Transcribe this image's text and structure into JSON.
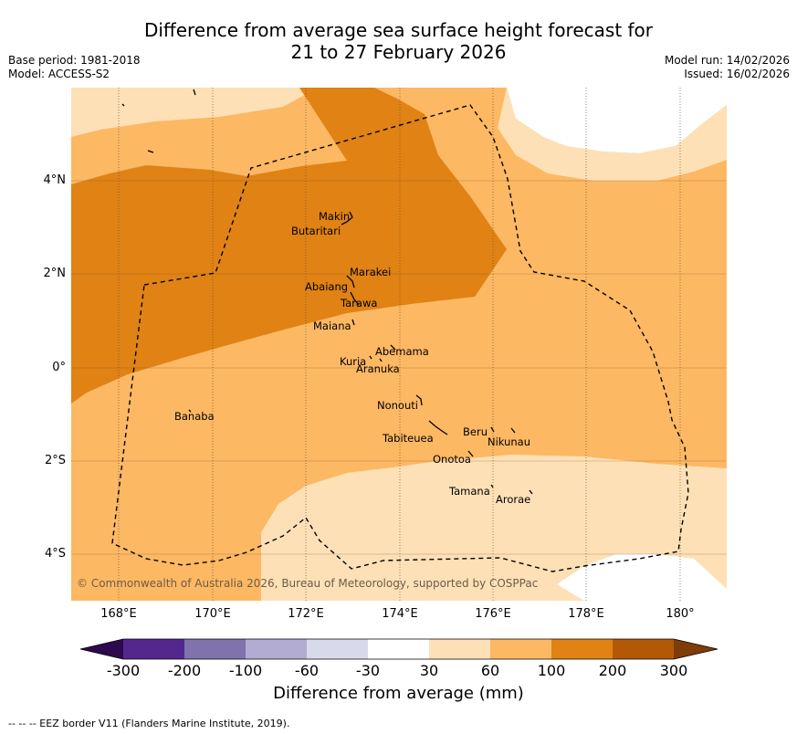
{
  "header": {
    "title_line1": "Difference from average sea surface height forecast for",
    "title_line2": "21 to 27 February 2026",
    "base_period": "Base period: 1981-2018",
    "model": "Model: ACCESS-S2",
    "model_run": "Model run: 14/02/2026",
    "issued": "Issued: 16/02/2026"
  },
  "map": {
    "lat_labels": [
      "4°N",
      "2°N",
      "0°",
      "2°S",
      "4°S"
    ],
    "lon_labels": [
      "168°E",
      "170°E",
      "172°E",
      "174°E",
      "176°E",
      "178°E",
      "180°"
    ],
    "places": [
      "Makin",
      "Butaritari",
      "Marakei",
      "Abaiang",
      "Tarawa",
      "Maiana",
      "Abemama",
      "Kuria",
      "Aranuka",
      "Nonouti",
      "Banaba",
      "Beru",
      "Nikunau",
      "Tabiteuea",
      "Onotoa",
      "Tamana",
      "Arorae"
    ],
    "credit": "© Commonwealth of Australia 2026, Bureau of Meteorology, supported by COSPPac"
  },
  "colorbar": {
    "labels": [
      "-300",
      "-200",
      "-100",
      "-60",
      "-30",
      "30",
      "60",
      "100",
      "200",
      "300"
    ],
    "colors": [
      "#2d0a4d",
      "#54278f",
      "#8073ac",
      "#b2abd2",
      "#d8daeb",
      "#ffffff",
      "#fee0b6",
      "#fdb863",
      "#e08214",
      "#b35806",
      "#7f3b08"
    ],
    "title": "Difference from average (mm)"
  },
  "footnote": "--  --  -- EEZ border V11 (Flanders Marine Institute, 2019)."
}
